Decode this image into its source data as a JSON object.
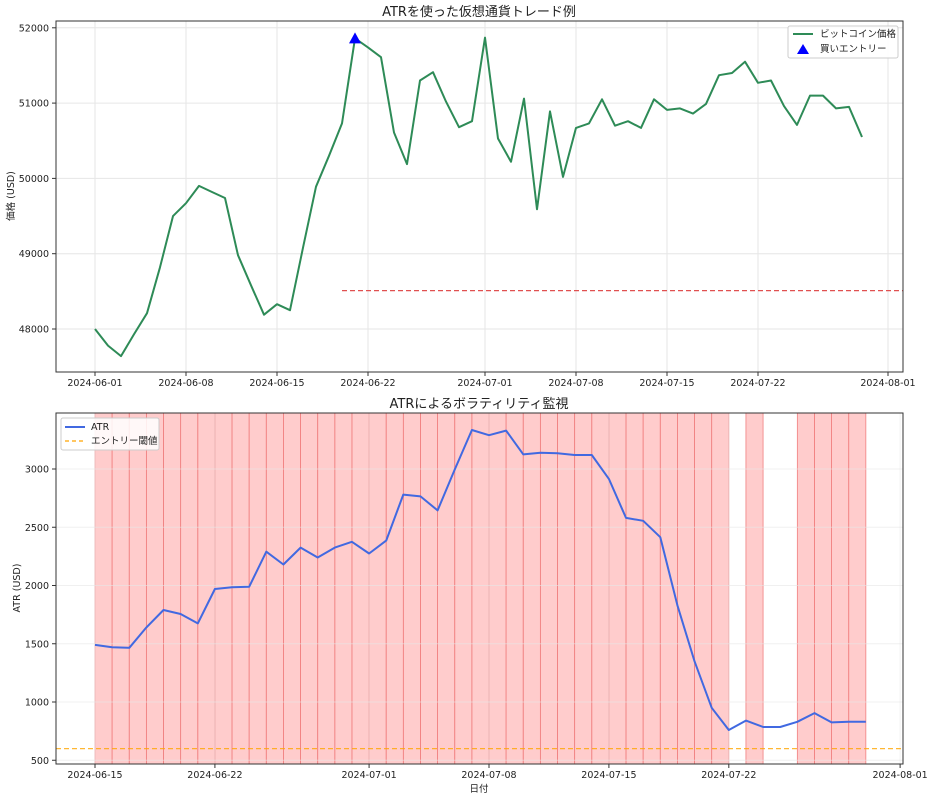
{
  "chart_data": [
    {
      "type": "line",
      "title": "ATRを使った仮想通貨トレード例",
      "xlabel": "",
      "ylabel": "価格 (USD)",
      "ylim": [
        47450,
        52100
      ],
      "grid": true,
      "legend_position": "upper right",
      "legend": [
        "ビットコイン価格",
        "買いエントリー"
      ],
      "x_ticks": [
        "2024-06-01",
        "2024-06-08",
        "2024-06-15",
        "2024-06-22",
        "2024-07-01",
        "2024-07-08",
        "2024-07-15",
        "2024-07-22",
        "2024-08-01"
      ],
      "y_ticks": [
        48000,
        49000,
        50000,
        51000,
        52000
      ],
      "x_start": "2024-06-01",
      "series": [
        {
          "name": "ビットコイン価格",
          "color": "#2e8b57",
          "values": [
            48000,
            47780,
            47640,
            47930,
            48210,
            48820,
            49500,
            49670,
            49900,
            49820,
            49740,
            48980,
            48580,
            48190,
            48330,
            48250,
            49080,
            49890,
            50300,
            50730,
            51860,
            51740,
            51610,
            50610,
            50190,
            51300,
            51410,
            51020,
            50680,
            50760,
            51870,
            50530,
            50220,
            51060,
            49590,
            50890,
            50020,
            50670,
            50730,
            51050,
            50700,
            50760,
            50670,
            51050,
            50910,
            50930,
            50860,
            50990,
            51370,
            51400,
            51550,
            51270,
            51300,
            50960,
            50710,
            51100,
            51100,
            50930,
            50950,
            50550
          ]
        }
      ],
      "markers": [
        {
          "name": "買いエントリー",
          "date": "2024-06-21",
          "value": 51860,
          "color": "#0000ff",
          "shape": "triangle-up"
        }
      ],
      "hlines": [
        {
          "value": 48510,
          "from": "2024-06-20",
          "color": "#e05050",
          "style": "dashed"
        }
      ]
    },
    {
      "type": "line",
      "title": "ATRによるボラティリティ監視",
      "xlabel": "日付",
      "ylabel": "ATR (USD)",
      "ylim": [
        470,
        3450
      ],
      "grid": true,
      "legend_position": "upper left",
      "legend": [
        "ATR",
        "エントリー閾値"
      ],
      "x_ticks": [
        "2024-06-15",
        "2024-06-22",
        "2024-07-01",
        "2024-07-08",
        "2024-07-15",
        "2024-07-22",
        "2024-08-01"
      ],
      "y_ticks": [
        500,
        1000,
        1500,
        2000,
        2500,
        3000
      ],
      "x_start": "2024-06-15",
      "series": [
        {
          "name": "ATR",
          "color": "#4169e1",
          "values": [
            1490,
            1470,
            1465,
            1640,
            1790,
            1755,
            1675,
            1970,
            1985,
            1990,
            2290,
            2180,
            2325,
            2240,
            2325,
            2375,
            2275,
            2385,
            2780,
            2765,
            2645,
            2995,
            3335,
            3290,
            3330,
            3125,
            3140,
            3135,
            3120,
            3120,
            2915,
            2580,
            2555,
            2415,
            1830,
            1350,
            950,
            760,
            840,
            785,
            785,
            830,
            905,
            825,
            830,
            830
          ]
        }
      ],
      "hlines": [
        {
          "name": "エントリー閾値",
          "value": 600,
          "color": "#ffa500",
          "style": "dashed"
        }
      ],
      "shaded_day_ranges": [
        [
          0,
          37
        ],
        [
          38,
          39
        ],
        [
          41,
          45
        ]
      ],
      "shade_color": "#ff0000"
    }
  ],
  "labels": {
    "top_title": "ATRを使った仮想通貨トレード例",
    "top_ylabel": "価格 (USD)",
    "top_legend_price": "ビットコイン価格",
    "top_legend_entry": "買いエントリー",
    "bottom_title": "ATRによるボラティリティ監視",
    "bottom_ylabel": "ATR (USD)",
    "bottom_xlabel": "日付",
    "bottom_legend_atr": "ATR",
    "bottom_legend_threshold": "エントリー閾値"
  }
}
